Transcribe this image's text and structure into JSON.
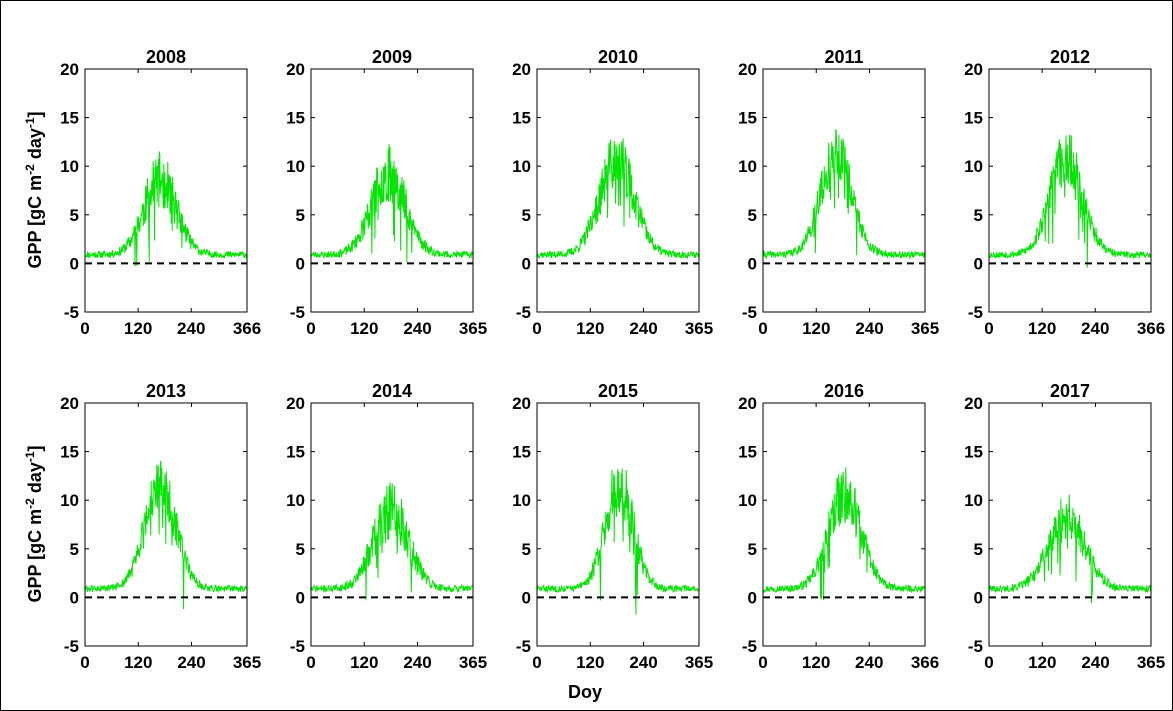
{
  "figure": {
    "xlabel": "Doy",
    "ylabel": "GPP [gC m",
    "ylabel_sup1": "-2",
    "ylabel_mid": " day",
    "ylabel_sup2": "-1",
    "ylabel_end": "]",
    "line_color": "#00e600",
    "zero_line_color": "#000000"
  },
  "chart_data": [
    {
      "type": "line",
      "title": "2008",
      "ylim": [
        -5,
        20
      ],
      "yticks": [
        "-5",
        "0",
        "5",
        "10",
        "15",
        "20"
      ],
      "xlim": [
        0,
        366
      ],
      "xticks": [
        "0",
        "120",
        "240",
        "366"
      ],
      "xtick_values": [
        0,
        120,
        240,
        366
      ],
      "zero_line": 0,
      "profile": {
        "base": 0.9,
        "peak": 8.6,
        "peak_day": 170,
        "width": 52,
        "noise": 2.6,
        "max": 13.3,
        "min": -0.5,
        "seed": 11
      }
    },
    {
      "type": "line",
      "title": "2009",
      "ylim": [
        -5,
        20
      ],
      "yticks": [
        "-5",
        "0",
        "5",
        "10",
        "15",
        "20"
      ],
      "xlim": [
        0,
        365
      ],
      "xticks": [
        "0",
        "120",
        "240",
        "365"
      ],
      "xtick_values": [
        0,
        120,
        240,
        365
      ],
      "zero_line": 0,
      "profile": {
        "base": 0.9,
        "peak": 9.3,
        "peak_day": 175,
        "width": 55,
        "noise": 2.7,
        "max": 14.9,
        "min": -1.8,
        "seed": 23
      }
    },
    {
      "type": "line",
      "title": "2010",
      "ylim": [
        -5,
        20
      ],
      "yticks": [
        "-5",
        "0",
        "5",
        "10",
        "15",
        "20"
      ],
      "xlim": [
        0,
        365
      ],
      "xticks": [
        "0",
        "120",
        "240",
        "365"
      ],
      "xtick_values": [
        0,
        120,
        240,
        365
      ],
      "zero_line": 0,
      "profile": {
        "base": 0.9,
        "peak": 10.6,
        "peak_day": 180,
        "width": 55,
        "noise": 2.8,
        "max": 13.6,
        "min": -0.5,
        "seed": 37
      }
    },
    {
      "type": "line",
      "title": "2011",
      "ylim": [
        -5,
        20
      ],
      "yticks": [
        "-5",
        "0",
        "5",
        "10",
        "15",
        "20"
      ],
      "xlim": [
        0,
        365
      ],
      "xticks": [
        "0",
        "120",
        "240",
        "365"
      ],
      "xtick_values": [
        0,
        120,
        240,
        365
      ],
      "zero_line": 0,
      "profile": {
        "base": 0.9,
        "peak": 11.2,
        "peak_day": 165,
        "width": 50,
        "noise": 2.4,
        "max": 14.0,
        "min": -1.1,
        "seed": 41
      }
    },
    {
      "type": "line",
      "title": "2012",
      "ylim": [
        -5,
        20
      ],
      "yticks": [
        "-5",
        "0",
        "5",
        "10",
        "15",
        "20"
      ],
      "xlim": [
        0,
        366
      ],
      "xticks": [
        "0",
        "120",
        "240",
        "366"
      ],
      "xtick_values": [
        0,
        120,
        240,
        366
      ],
      "zero_line": 0,
      "profile": {
        "base": 0.9,
        "peak": 11.0,
        "peak_day": 175,
        "width": 52,
        "noise": 2.6,
        "max": 16.8,
        "min": -1.1,
        "seed": 53
      }
    },
    {
      "type": "line",
      "title": "2013",
      "ylim": [
        -5,
        20
      ],
      "yticks": [
        "-5",
        "0",
        "5",
        "10",
        "15",
        "20"
      ],
      "xlim": [
        0,
        365
      ],
      "xticks": [
        "0",
        "120",
        "240",
        "365"
      ],
      "xtick_values": [
        0,
        120,
        240,
        365
      ],
      "zero_line": 0,
      "profile": {
        "base": 0.9,
        "peak": 11.3,
        "peak_day": 170,
        "width": 50,
        "noise": 2.5,
        "max": 15.2,
        "min": -1.3,
        "seed": 61
      }
    },
    {
      "type": "line",
      "title": "2014",
      "ylim": [
        -5,
        20
      ],
      "yticks": [
        "-5",
        "0",
        "5",
        "10",
        "15",
        "20"
      ],
      "xlim": [
        0,
        365
      ],
      "xticks": [
        "0",
        "120",
        "240",
        "365"
      ],
      "xtick_values": [
        0,
        120,
        240,
        365
      ],
      "zero_line": 0,
      "profile": {
        "base": 0.9,
        "peak": 9.0,
        "peak_day": 180,
        "width": 55,
        "noise": 2.8,
        "max": 12.7,
        "min": -0.8,
        "seed": 71
      }
    },
    {
      "type": "line",
      "title": "2015",
      "ylim": [
        -5,
        20
      ],
      "yticks": [
        "-5",
        "0",
        "5",
        "10",
        "15",
        "20"
      ],
      "xlim": [
        0,
        365
      ],
      "xticks": [
        "0",
        "120",
        "240",
        "365"
      ],
      "xtick_values": [
        0,
        120,
        240,
        365
      ],
      "zero_line": 0,
      "profile": {
        "base": 0.9,
        "peak": 11.5,
        "peak_day": 185,
        "width": 45,
        "noise": 2.9,
        "max": 16.8,
        "min": -1.9,
        "seed": 83
      }
    },
    {
      "type": "line",
      "title": "2016",
      "ylim": [
        -5,
        20
      ],
      "yticks": [
        "-5",
        "0",
        "5",
        "10",
        "15",
        "20"
      ],
      "xlim": [
        0,
        366
      ],
      "xticks": [
        "0",
        "120",
        "240",
        "366"
      ],
      "xtick_values": [
        0,
        120,
        240,
        366
      ],
      "zero_line": 0,
      "profile": {
        "base": 0.9,
        "peak": 10.7,
        "peak_day": 185,
        "width": 52,
        "noise": 2.5,
        "max": 13.6,
        "min": -1.8,
        "seed": 97
      }
    },
    {
      "type": "line",
      "title": "2017",
      "ylim": [
        -5,
        20
      ],
      "yticks": [
        "-5",
        "0",
        "5",
        "10",
        "15",
        "20"
      ],
      "xlim": [
        0,
        365
      ],
      "xticks": [
        "0",
        "120",
        "240",
        "365"
      ],
      "xtick_values": [
        0,
        120,
        240,
        365
      ],
      "zero_line": 0,
      "profile": {
        "base": 0.9,
        "peak": 8.3,
        "peak_day": 175,
        "width": 58,
        "noise": 2.0,
        "max": 12.5,
        "min": -1.2,
        "seed": 101
      }
    }
  ]
}
